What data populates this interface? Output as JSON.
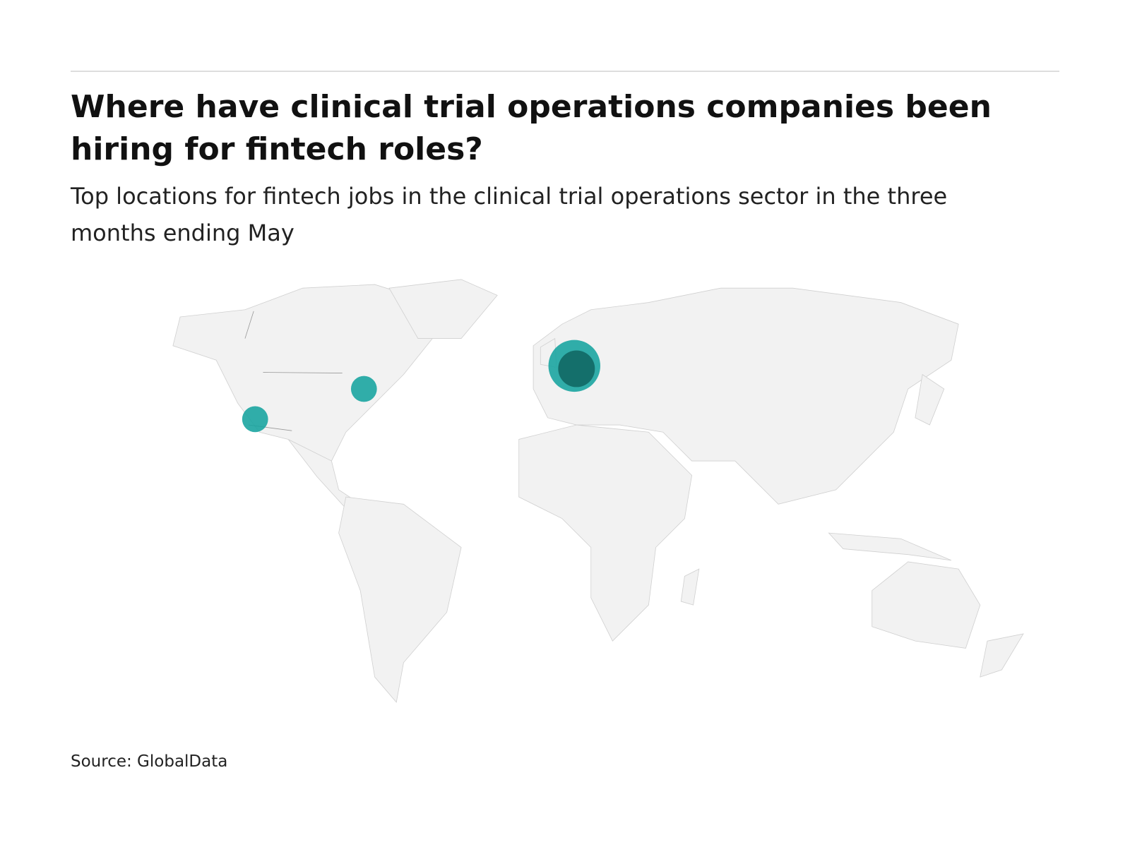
{
  "chart_data": {
    "type": "bubble-map",
    "title": "Where have clinical trial operations companies been hiring for fintech roles?",
    "subtitle": "Top locations for fintech jobs in the clinical trial operations sector in the three months ending May",
    "source": "Source: GlobalData",
    "values": [
      4,
      2,
      1,
      1
    ],
    "color": "#14a39e"
  }
}
